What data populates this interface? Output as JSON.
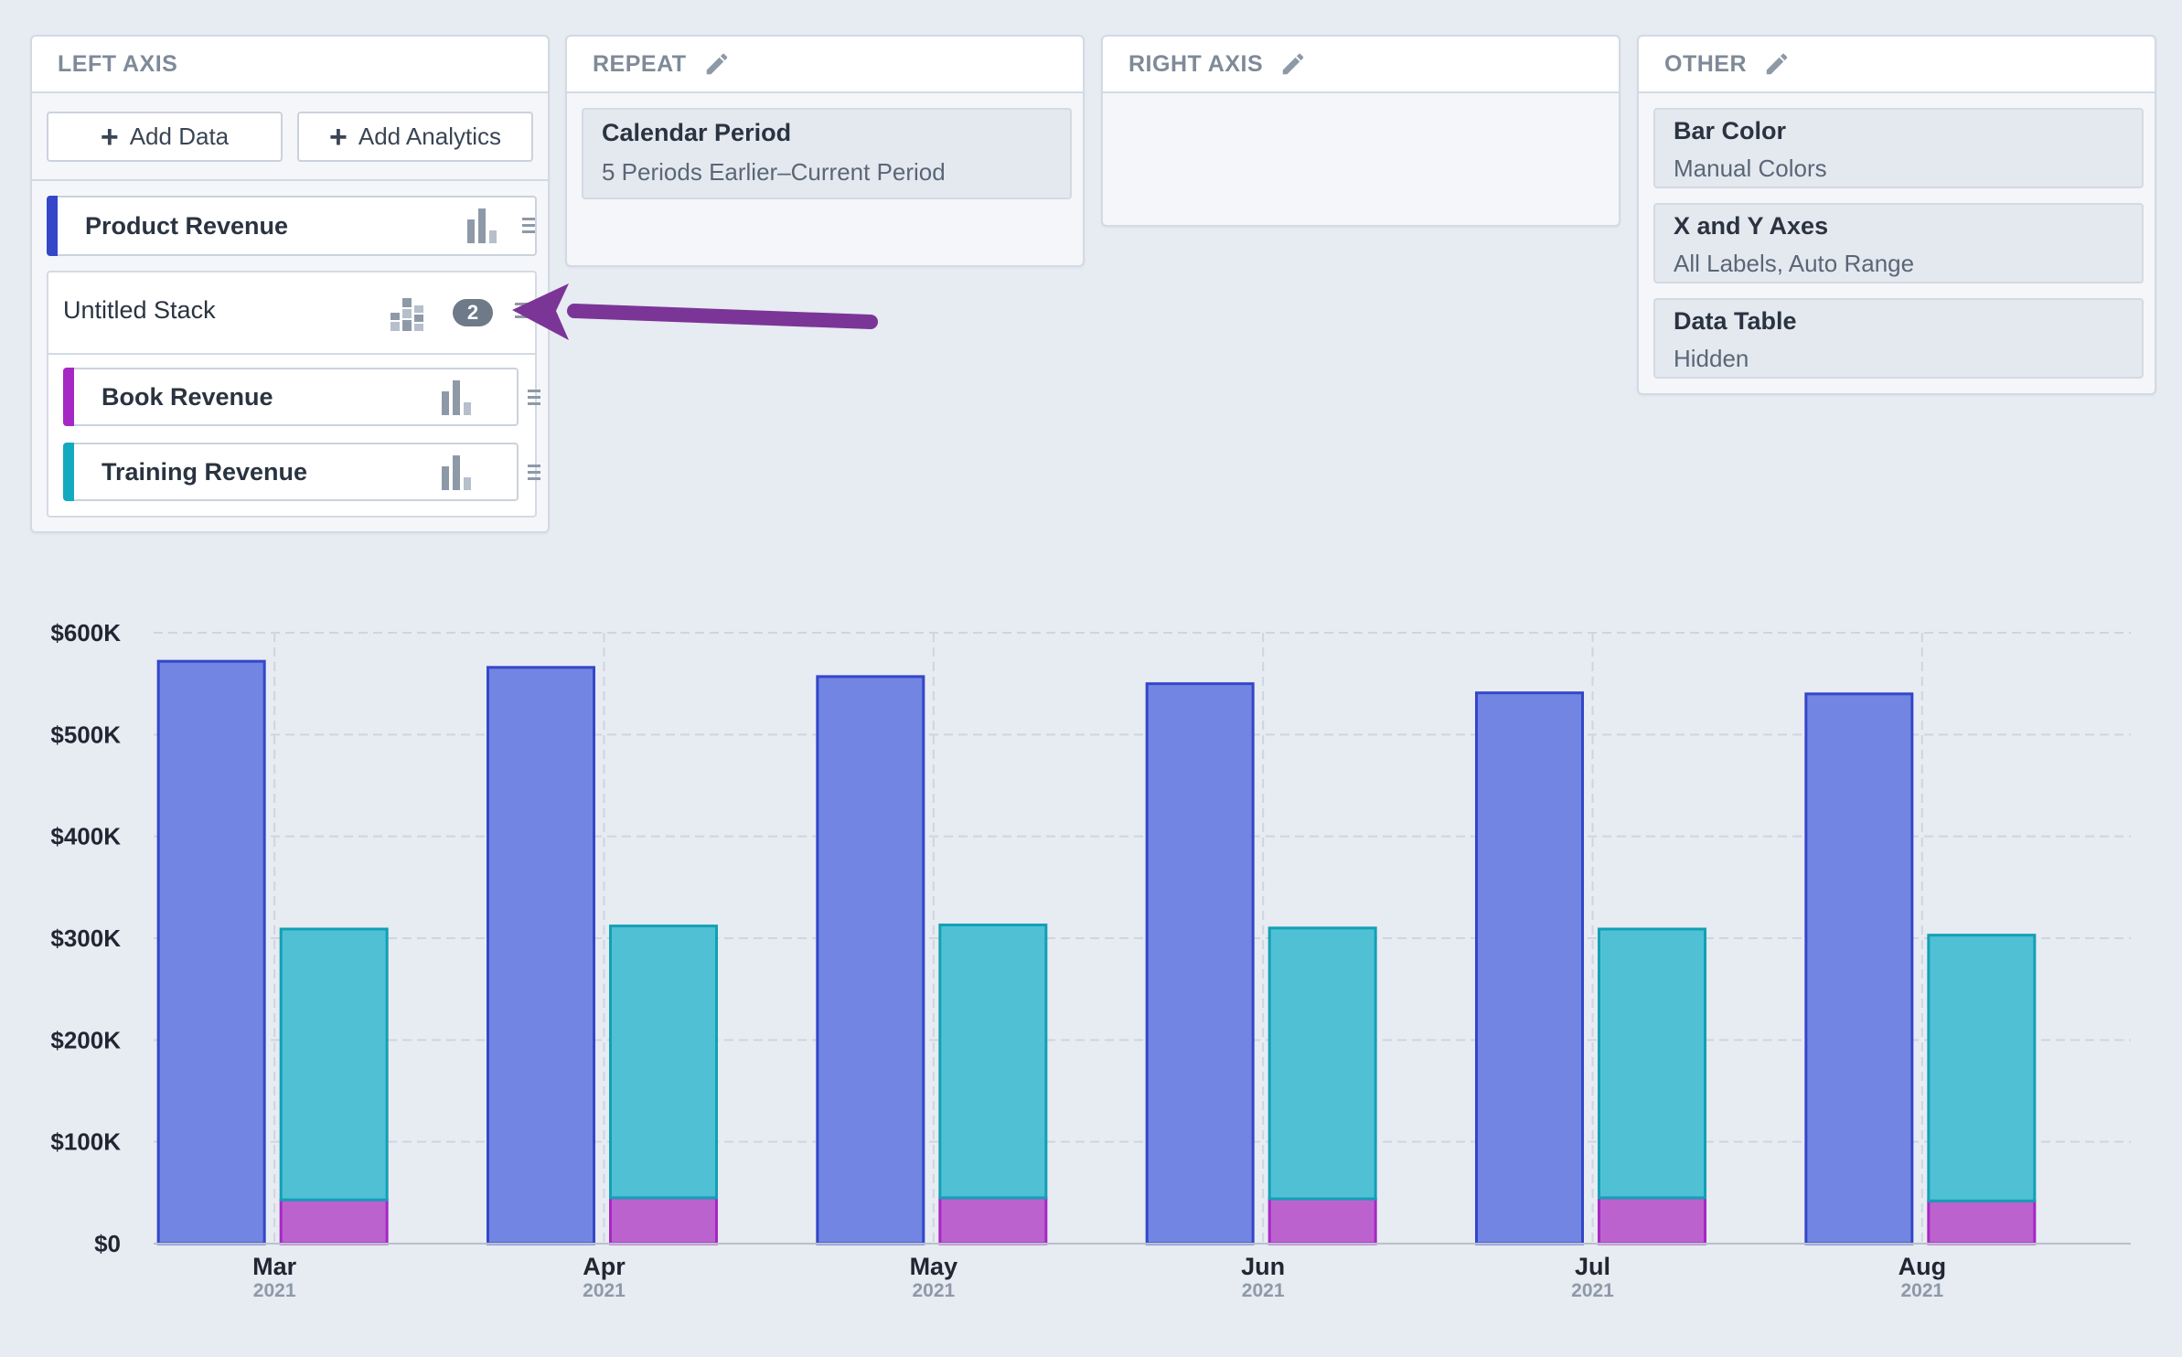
{
  "left_axis": {
    "title": "LEFT AXIS",
    "add_data_label": "Add Data",
    "add_analytics_label": "Add Analytics",
    "series": [
      {
        "label": "Product Revenue",
        "color": "#3447c8"
      },
      {
        "label": "Book Revenue",
        "color": "#a628c4"
      },
      {
        "label": "Training Revenue",
        "color": "#12aabf"
      }
    ],
    "stack": {
      "label": "Untitled Stack",
      "count": "2"
    }
  },
  "repeat": {
    "title": "REPEAT",
    "item_title": "Calendar Period",
    "item_sub": "5 Periods Earlier–Current Period"
  },
  "right_axis": {
    "title": "RIGHT AXIS"
  },
  "other": {
    "title": "OTHER",
    "items": [
      {
        "title": "Bar Color",
        "sub": "Manual Colors"
      },
      {
        "title": "X and Y Axes",
        "sub": "All Labels, Auto Range"
      },
      {
        "title": "Data Table",
        "sub": "Hidden"
      }
    ]
  },
  "annotation": {
    "arrow_color": "#7b3597"
  },
  "chart_data": {
    "type": "bar",
    "categories": [
      "Mar",
      "Apr",
      "May",
      "Jun",
      "Jul",
      "Aug"
    ],
    "category_years": [
      "2021",
      "2021",
      "2021",
      "2021",
      "2021",
      "2021"
    ],
    "y_tick_labels": [
      "$0",
      "$100K",
      "$200K",
      "$300K",
      "$400K",
      "$500K",
      "$600K"
    ],
    "ylim": [
      0,
      600000
    ],
    "grid": true,
    "series": [
      {
        "name": "Product Revenue",
        "values": [
          572000,
          566000,
          557000,
          550000,
          541000,
          540000
        ],
        "fill": "#7285e2",
        "stroke": "#3447c8",
        "stack": "a"
      },
      {
        "name": "Book Revenue",
        "values": [
          43000,
          45000,
          45000,
          44000,
          45000,
          42000
        ],
        "fill": "#bc62cf",
        "stroke": "#a628c4",
        "stack": "b"
      },
      {
        "name": "Training Revenue",
        "values": [
          266000,
          267000,
          268000,
          266000,
          264000,
          261000
        ],
        "fill": "#50c1d5",
        "stroke": "#12a0b4",
        "stack": "b"
      }
    ]
  }
}
